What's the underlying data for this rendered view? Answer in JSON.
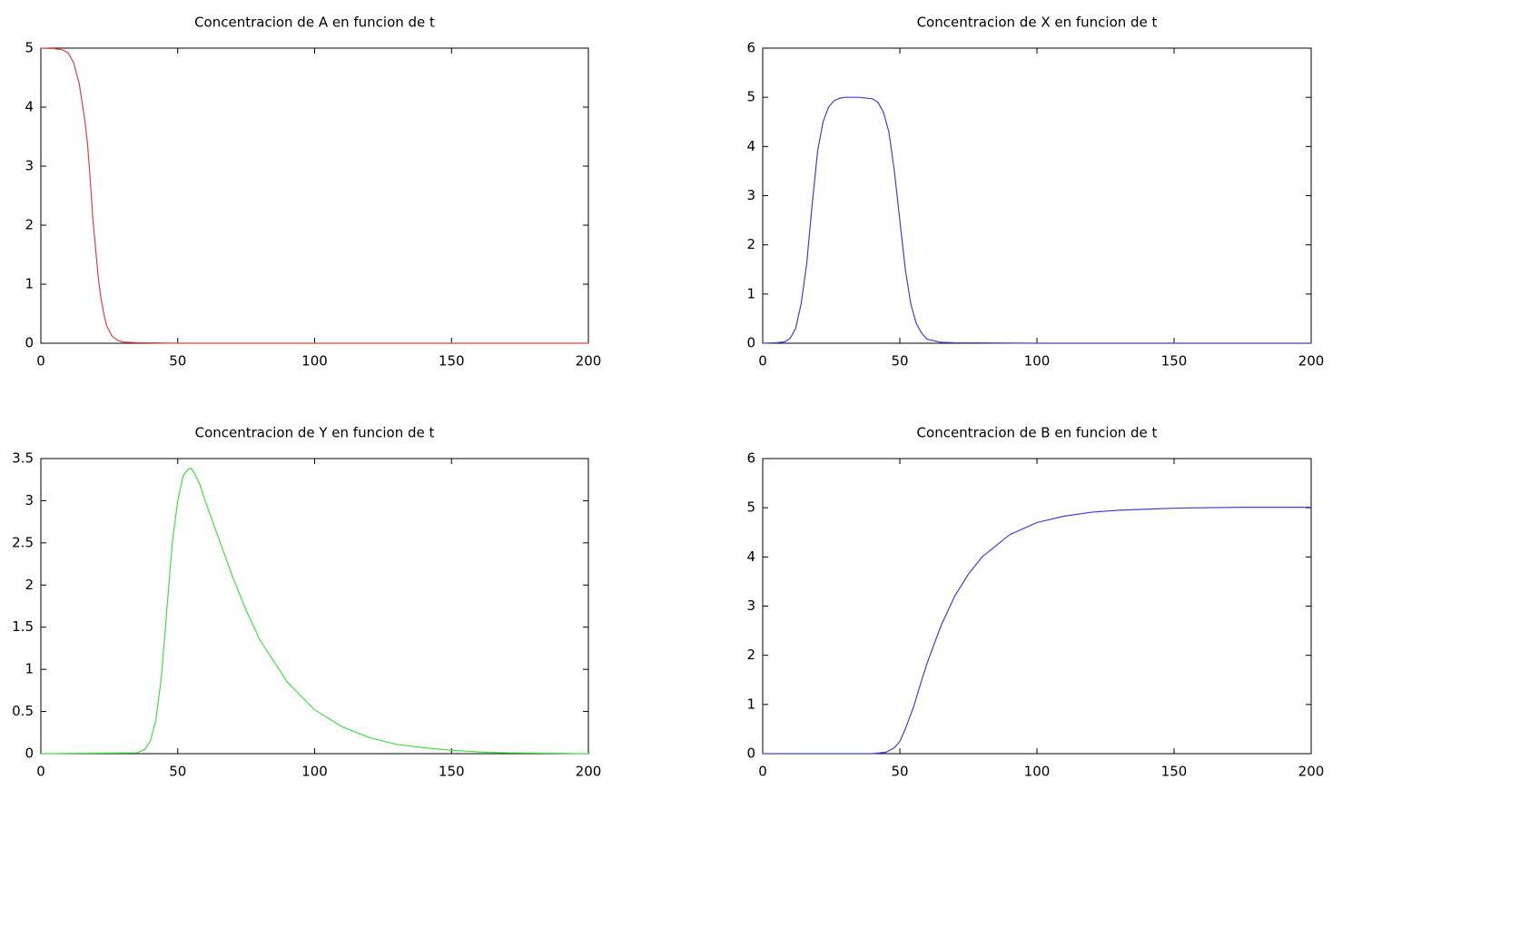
{
  "chart_data": [
    {
      "type": "line",
      "title": "Concentracion de A en funcion de t",
      "x": [
        0,
        5,
        8,
        10,
        12,
        14,
        16,
        17,
        18,
        19,
        20,
        21,
        22,
        23,
        24,
        26,
        28,
        30,
        35,
        50,
        100,
        200
      ],
      "series": [
        {
          "color": "#e04040",
          "values": [
            5,
            4.99,
            4.97,
            4.92,
            4.75,
            4.4,
            3.8,
            3.4,
            2.8,
            2.1,
            1.6,
            1.1,
            0.75,
            0.5,
            0.3,
            0.12,
            0.05,
            0.02,
            0.01,
            0,
            0,
            0
          ]
        }
      ],
      "xlim": [
        0,
        200
      ],
      "xticks": [
        0,
        50,
        100,
        150,
        200
      ],
      "ylim": [
        0,
        5
      ],
      "yticks": [
        0,
        1,
        2,
        3,
        4,
        5
      ]
    },
    {
      "type": "line",
      "title": "Concentracion de X en funcion de t",
      "x": [
        0,
        5,
        8,
        10,
        12,
        14,
        16,
        18,
        20,
        22,
        24,
        26,
        28,
        30,
        35,
        40,
        42,
        44,
        46,
        48,
        50,
        52,
        54,
        56,
        58,
        60,
        65,
        70,
        100,
        200
      ],
      "series": [
        {
          "color": "#4040d0",
          "values": [
            0,
            0.01,
            0.03,
            0.1,
            0.3,
            0.8,
            1.6,
            2.8,
            3.9,
            4.5,
            4.8,
            4.93,
            4.98,
            5,
            5,
            4.97,
            4.9,
            4.7,
            4.3,
            3.5,
            2.5,
            1.5,
            0.8,
            0.4,
            0.2,
            0.08,
            0.02,
            0.01,
            0,
            0
          ]
        }
      ],
      "xlim": [
        0,
        200
      ],
      "xticks": [
        0,
        50,
        100,
        150,
        200
      ],
      "ylim": [
        0,
        6
      ],
      "yticks": [
        0,
        1,
        2,
        3,
        4,
        5,
        6
      ]
    },
    {
      "type": "line",
      "title": "Concentracion de Y en funcion de t",
      "x": [
        0,
        35,
        38,
        40,
        42,
        44,
        46,
        48,
        50,
        52,
        54,
        55,
        56,
        58,
        60,
        65,
        70,
        75,
        80,
        90,
        100,
        110,
        120,
        130,
        140,
        150,
        160,
        170,
        200
      ],
      "series": [
        {
          "color": "#40e040",
          "values": [
            0,
            0.01,
            0.05,
            0.15,
            0.4,
            0.9,
            1.7,
            2.5,
            3.0,
            3.3,
            3.38,
            3.38,
            3.33,
            3.2,
            3.0,
            2.55,
            2.1,
            1.7,
            1.35,
            0.85,
            0.52,
            0.32,
            0.19,
            0.11,
            0.07,
            0.04,
            0.02,
            0.01,
            0
          ]
        }
      ],
      "xlim": [
        0,
        200
      ],
      "xticks": [
        0,
        50,
        100,
        150,
        200
      ],
      "ylim": [
        0,
        3.5
      ],
      "yticks": [
        0,
        0.5,
        1,
        1.5,
        2,
        2.5,
        3,
        3.5
      ]
    },
    {
      "type": "line",
      "title": "Concentracion de B en funcion de t",
      "x": [
        0,
        40,
        45,
        48,
        50,
        52,
        55,
        58,
        60,
        65,
        70,
        75,
        80,
        90,
        100,
        110,
        120,
        130,
        150,
        175,
        200
      ],
      "series": [
        {
          "color": "#4040d0",
          "values": [
            0,
            0,
            0.03,
            0.12,
            0.25,
            0.5,
            0.95,
            1.5,
            1.85,
            2.6,
            3.2,
            3.65,
            4.0,
            4.45,
            4.7,
            4.83,
            4.91,
            4.95,
            4.99,
            5.01,
            5.01
          ]
        }
      ],
      "xlim": [
        0,
        200
      ],
      "xticks": [
        0,
        50,
        100,
        150,
        200
      ],
      "ylim": [
        0,
        6
      ],
      "yticks": [
        0,
        1,
        2,
        3,
        4,
        5,
        6
      ]
    }
  ]
}
